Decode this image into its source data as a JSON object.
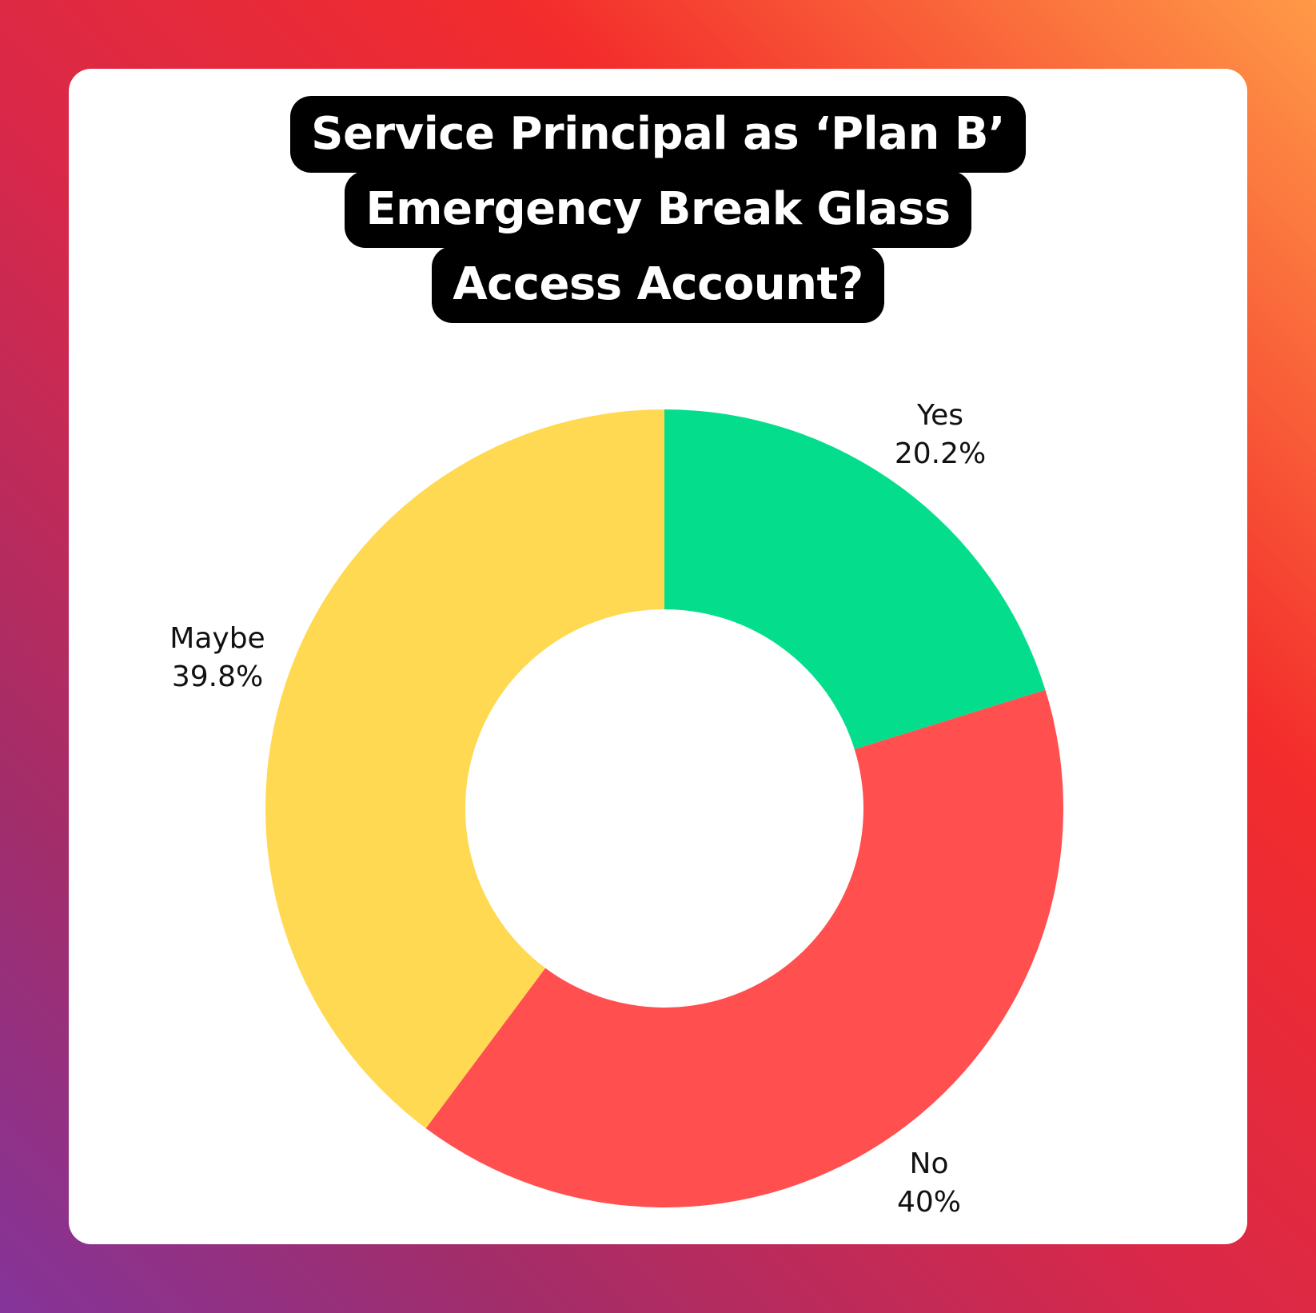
{
  "title": {
    "lines": [
      "Service Principal as ‘Plan B’",
      "Emergency Break Glass",
      "Access Account?"
    ]
  },
  "colors": {
    "yes": "#04DE8C",
    "no": "#FF4F4F",
    "maybe": "#FFD952",
    "title_bg": "#000000",
    "card_bg": "#FFFFFF"
  },
  "labels": {
    "yes": {
      "name": "Yes",
      "value": "20.2%"
    },
    "no": {
      "name": "No",
      "value": "40%"
    },
    "maybe": {
      "name": "Maybe",
      "value": "39.8%"
    }
  },
  "chart_data": {
    "type": "pie",
    "variant": "donut",
    "title": "Service Principal as ‘Plan B’ Emergency Break Glass Access Account?",
    "categories": [
      "Yes",
      "No",
      "Maybe"
    ],
    "values": [
      20.2,
      40,
      39.8
    ],
    "unit": "%",
    "colors": [
      "#04DE8C",
      "#FF4F4F",
      "#FFD952"
    ],
    "start_angle": "12 o'clock, clockwise",
    "legend": "none (direct labels outside slices)"
  }
}
